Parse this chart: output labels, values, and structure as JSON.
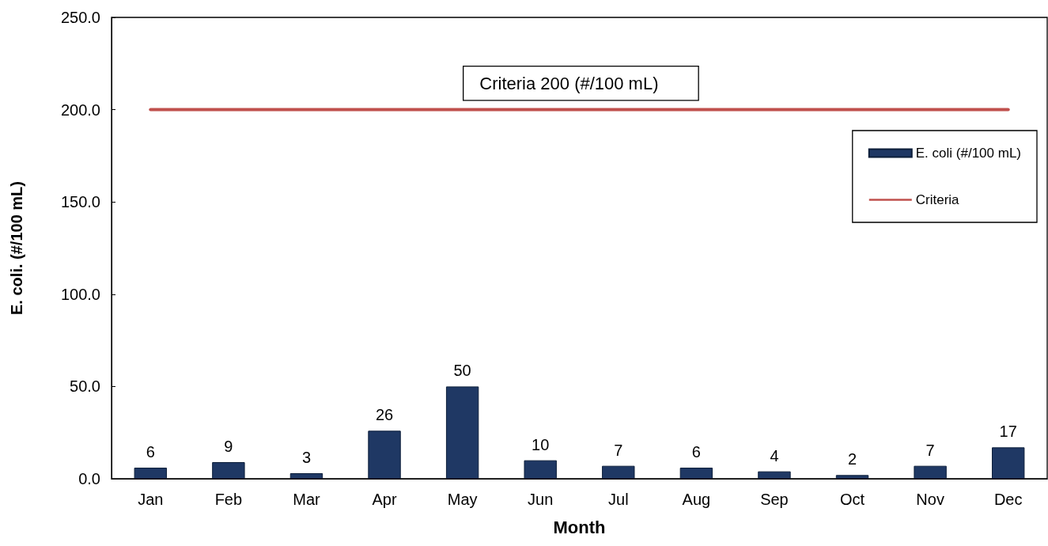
{
  "chart_data": {
    "type": "bar",
    "xlabel": "Month",
    "ylabel": "E. coli. (#/100 mL)",
    "categories": [
      "Jan",
      "Feb",
      "Mar",
      "Apr",
      "May",
      "Jun",
      "Jul",
      "Aug",
      "Sep",
      "Oct",
      "Nov",
      "Dec"
    ],
    "series": [
      {
        "name": "E. coli (#/100 mL)",
        "color": "#1f3864",
        "values": [
          6,
          9,
          3,
          26,
          50,
          10,
          7,
          6,
          4,
          2,
          7,
          17
        ],
        "value_labels": [
          "6",
          "9",
          "3",
          "26",
          "50",
          "10",
          "7",
          "6",
          "4",
          "2",
          "7",
          "17"
        ]
      },
      {
        "name": "Criteria",
        "type": "line",
        "color": "#c0504d",
        "values": [
          200,
          200,
          200,
          200,
          200,
          200,
          200,
          200,
          200,
          200,
          200,
          200
        ]
      }
    ],
    "ylim": [
      0,
      250
    ],
    "yticks": [
      {
        "value": 0,
        "label": "0.0"
      },
      {
        "value": 50,
        "label": "50.0"
      },
      {
        "value": 100,
        "label": "100.0"
      },
      {
        "value": 150,
        "label": "150.0"
      },
      {
        "value": 200,
        "label": "200.0"
      },
      {
        "value": 250,
        "label": "250.0"
      }
    ],
    "marker": "none",
    "legend": "top right",
    "annotations": [
      "Criteria 200 (#/100 mL)"
    ]
  }
}
